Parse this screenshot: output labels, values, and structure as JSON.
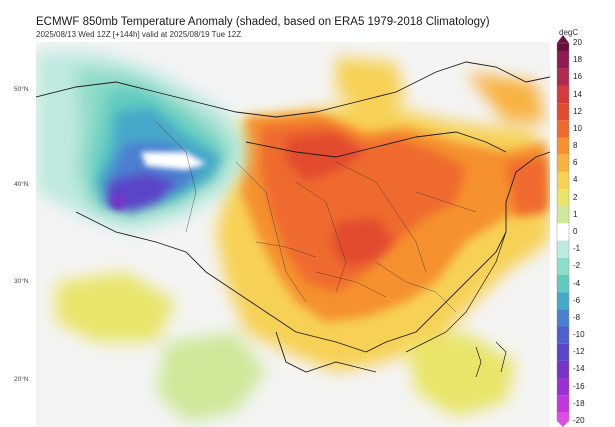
{
  "header": {
    "title": "ECMWF 850mb Temperature Anomaly (shaded, based on ERA5 1979-2018 Climatology)",
    "subtitle": "2025/08/13 Wed 12Z [+144h] valid at 2025/08/19 Tue 12Z"
  },
  "map": {
    "latitude_labels": [
      "50°N",
      "40°N",
      "30°N",
      "20°N"
    ],
    "field": "850mb temperature anomaly",
    "warm_anomaly_region": "northern and central China",
    "cold_anomaly_region": "northwestern China / Kazakhstan"
  },
  "colorbar": {
    "unit": "degC",
    "ticks": [
      "20",
      "18",
      "16",
      "14",
      "12",
      "10",
      "8",
      "6",
      "4",
      "2",
      "1",
      "0",
      "-1",
      "-2",
      "-4",
      "-6",
      "-8",
      "-10",
      "-12",
      "-14",
      "-16",
      "-18",
      "-20"
    ],
    "colors": [
      "#6a0f3e",
      "#8e1c52",
      "#b02a4f",
      "#d23c3c",
      "#e24b2f",
      "#ef6a2e",
      "#f5912f",
      "#f8b23f",
      "#f7d154",
      "#e9e56b",
      "#cfe89a",
      "#ffffff",
      "#bfeadf",
      "#8fdcc8",
      "#5fcbc0",
      "#47a9c9",
      "#4b7fd0",
      "#4f5fd0",
      "#5a45c8",
      "#7435c7",
      "#9a2fd2",
      "#c037dc",
      "#e04de6"
    ]
  }
}
